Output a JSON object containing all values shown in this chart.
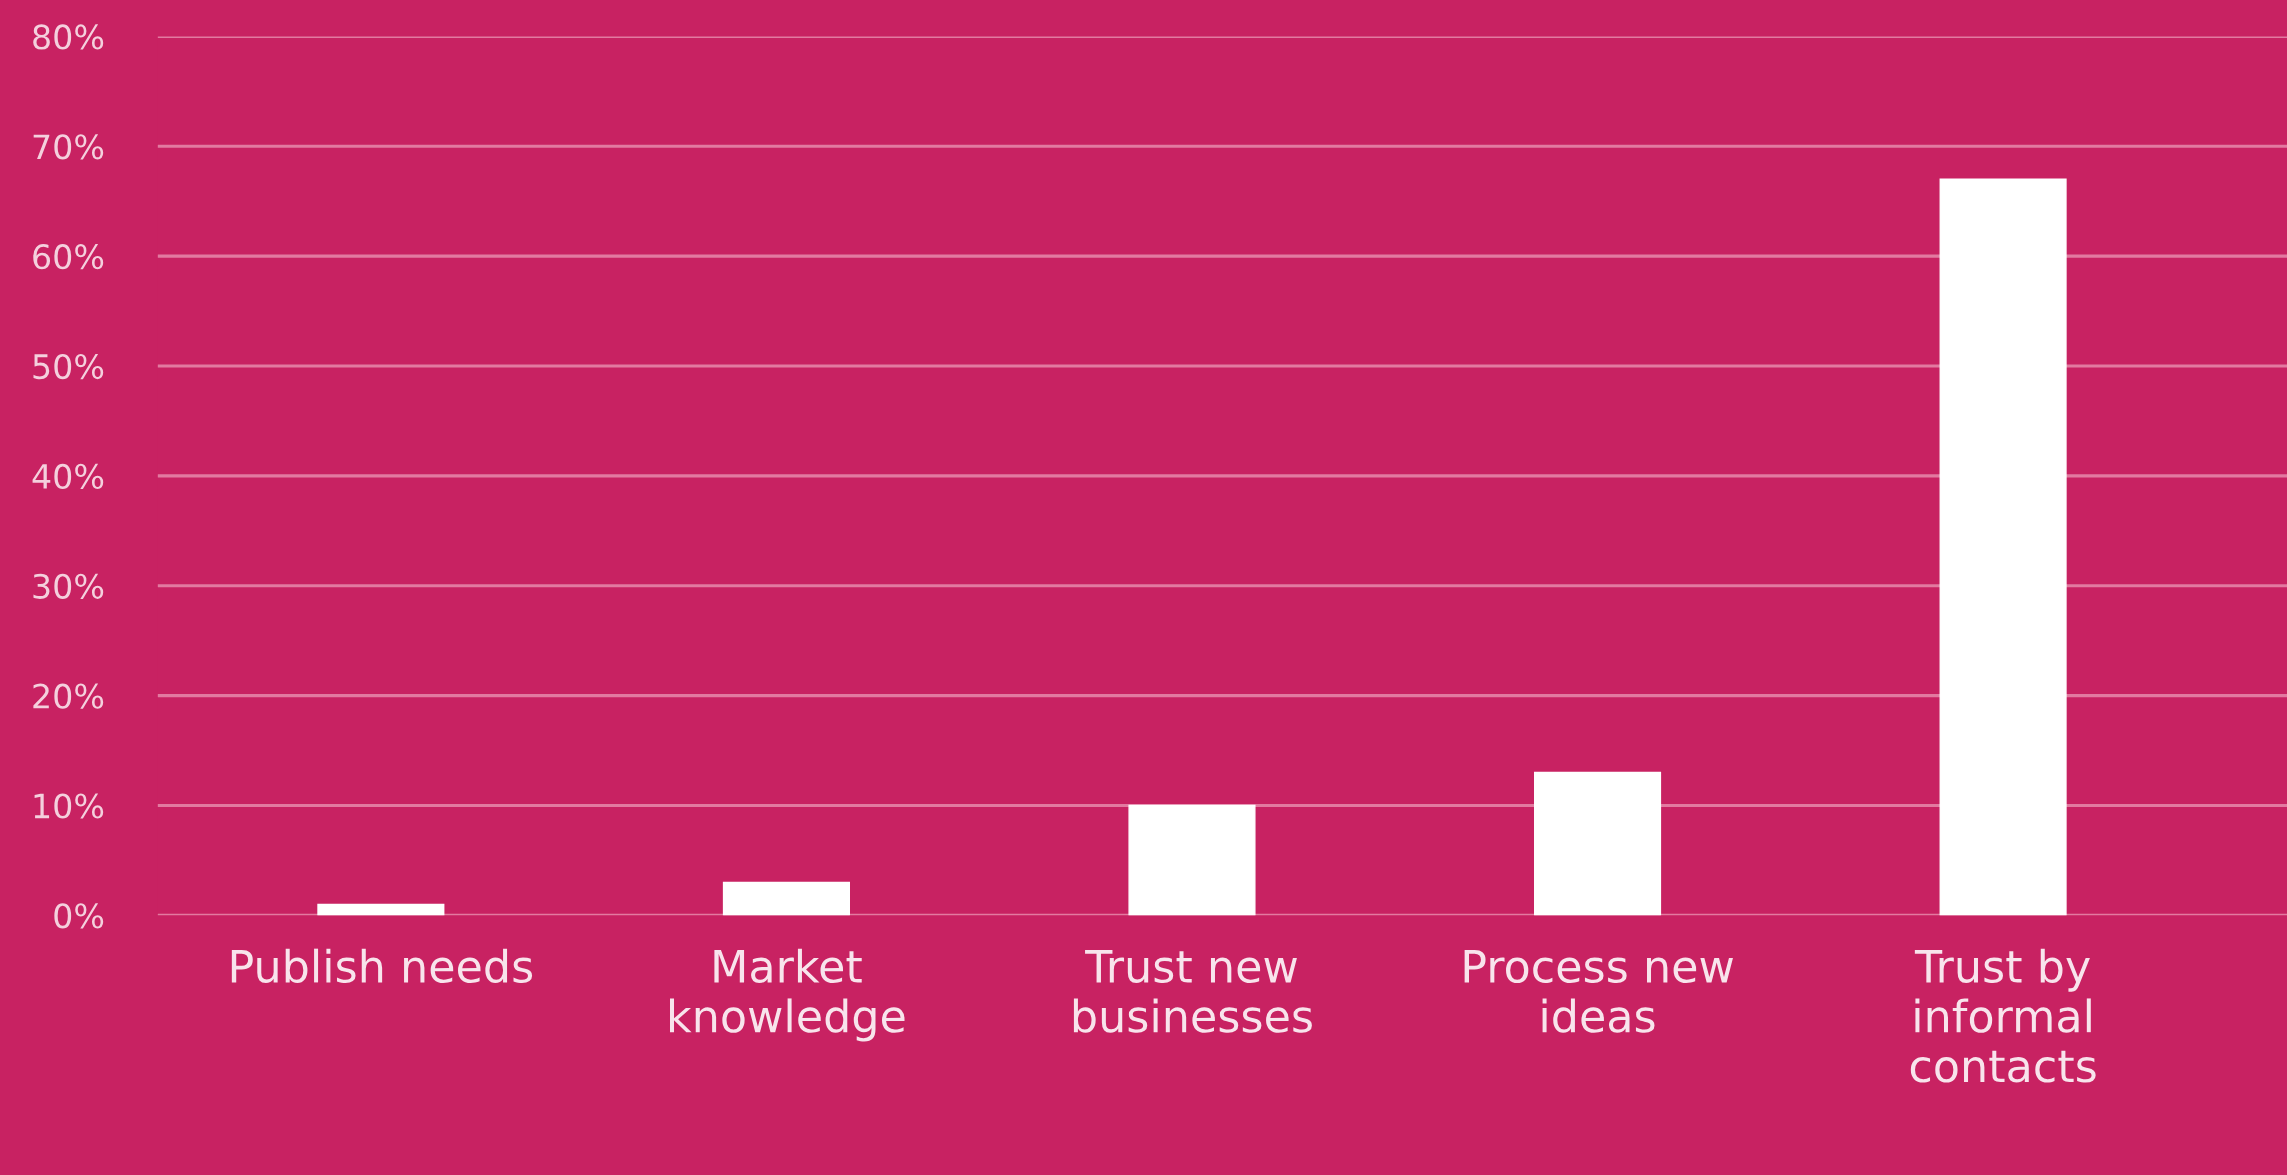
{
  "chart_data": {
    "type": "bar",
    "categories": [
      "Publish needs",
      "Market knowledge",
      "Trust new businesses",
      "Process new ideas",
      "Trust by informal contacts"
    ],
    "values": [
      1,
      3,
      10,
      13,
      67
    ],
    "color": "#ffffff",
    "ylim": [
      0,
      80
    ],
    "yticks": [
      {
        "value": 0,
        "label": "0%"
      },
      {
        "value": 10,
        "label": "10%"
      },
      {
        "value": 20,
        "label": "20%"
      },
      {
        "value": 30,
        "label": "30%"
      },
      {
        "value": 40,
        "label": "40%"
      },
      {
        "value": 50,
        "label": "50%"
      },
      {
        "value": 60,
        "label": "60%"
      },
      {
        "value": 70,
        "label": "70%"
      },
      {
        "value": 80,
        "label": "80%"
      }
    ],
    "grid": "y",
    "legend": false
  }
}
